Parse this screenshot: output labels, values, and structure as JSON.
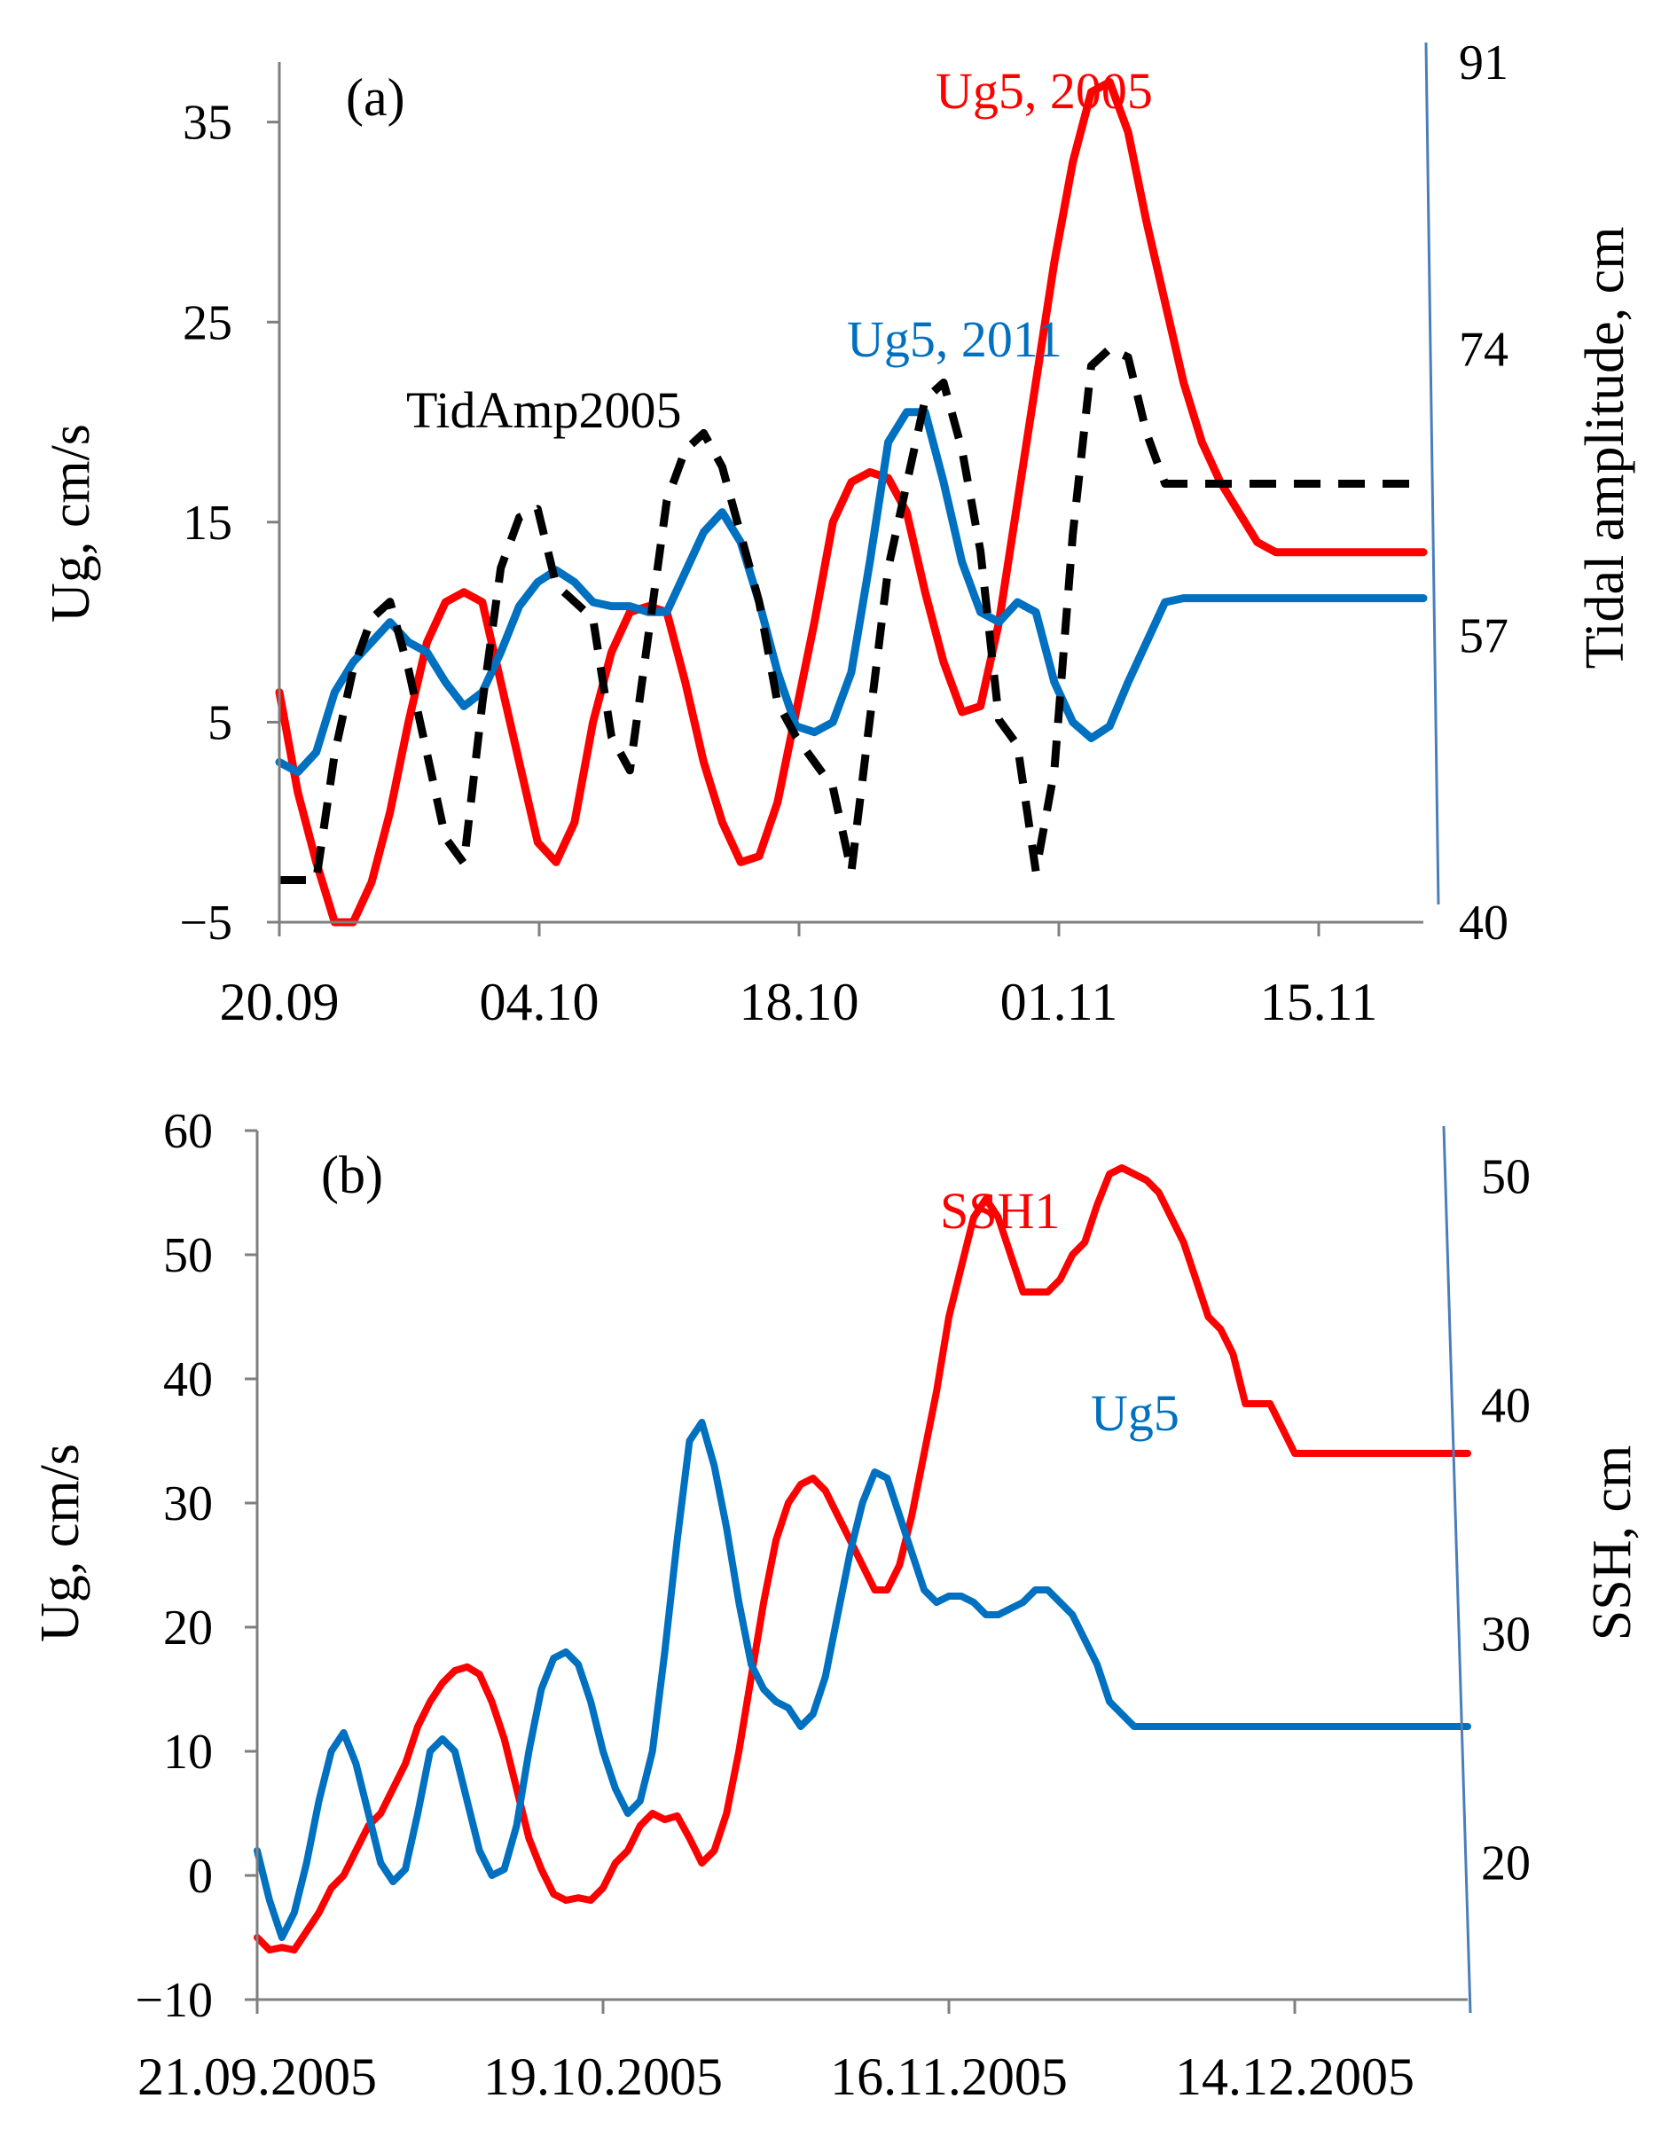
{
  "chart_data": [
    {
      "panel_label": "(a)",
      "type": "line",
      "x_tick_labels": [
        "20.09",
        "04.10",
        "18.10",
        "01.11",
        "15.11"
      ],
      "x_range_days": [
        0,
        62
      ],
      "ylabel": "Ug, cm/s",
      "ylim": [
        -5,
        38
      ],
      "y_ticks": [
        35,
        25,
        15,
        5,
        -5
      ],
      "y_tick_labels": [
        "35",
        "25",
        "15",
        "5",
        "−5"
      ],
      "y2label": "Tidal amplitude, cm",
      "y2lim": [
        40,
        91
      ],
      "y2_ticks": [
        91,
        74,
        57,
        40
      ],
      "y2_tick_labels": [
        "91",
        "74",
        "57",
        "40"
      ],
      "grid": false,
      "series": [
        {
          "name": "Ug5, 2005",
          "label": "Ug5, 2005",
          "color": "#ff0000",
          "axis": "left",
          "style": "solid",
          "x": [
            0,
            1,
            2,
            3,
            4,
            5,
            6,
            7,
            8,
            9,
            10,
            11,
            12,
            13,
            14,
            15,
            16,
            17,
            18,
            19,
            20,
            21,
            22,
            23,
            24,
            25,
            26,
            27,
            28,
            29,
            30,
            31,
            32,
            33,
            34,
            35,
            36,
            37,
            38,
            39,
            40,
            41,
            42,
            43,
            44,
            45,
            46,
            47,
            48,
            49,
            50,
            51,
            52,
            53,
            54,
            55,
            56,
            57,
            58,
            59,
            60,
            61,
            62
          ],
          "values": [
            6.5,
            1.5,
            -2,
            -5,
            -5,
            -3,
            0.5,
            5,
            9,
            11,
            11.5,
            11,
            7,
            3,
            -1,
            -2,
            0,
            5,
            8.5,
            10.5,
            10.8,
            10.5,
            7,
            3,
            0,
            -2,
            -1.7,
            1,
            5.5,
            10,
            15,
            17,
            17.5,
            17.2,
            15.5,
            11.5,
            8,
            5.5,
            5.8,
            10,
            16,
            22,
            28,
            33,
            36.5,
            37,
            34.5,
            30,
            26,
            22,
            19,
            17,
            15.5,
            14,
            13.5,
            13.5,
            13.5,
            13.5,
            13.5,
            13.5,
            13.5,
            13.5,
            13.5
          ]
        },
        {
          "name": "Ug5, 2011",
          "label": "Ug5, 2011",
          "color": "#0070c0",
          "axis": "left",
          "style": "solid",
          "x": [
            0,
            1,
            2,
            3,
            4,
            5,
            6,
            7,
            8,
            9,
            10,
            11,
            12,
            13,
            14,
            15,
            16,
            17,
            18,
            19,
            20,
            21,
            22,
            23,
            24,
            25,
            26,
            27,
            28,
            29,
            30,
            31,
            32,
            33,
            34,
            35,
            36,
            37,
            38,
            39,
            40,
            41,
            42,
            43,
            44,
            45,
            46,
            47,
            48,
            49,
            50,
            51,
            52,
            53,
            54,
            55,
            56,
            57,
            58,
            59,
            60,
            61,
            62
          ],
          "values": [
            3,
            2.5,
            3.5,
            6.5,
            8,
            9,
            10,
            9,
            8.5,
            7,
            5.8,
            6.5,
            8.5,
            10.8,
            12,
            12.6,
            12,
            11,
            10.8,
            10.8,
            10.5,
            10.5,
            12.5,
            14.5,
            15.5,
            14,
            11,
            7.5,
            4.8,
            4.5,
            5,
            7.5,
            13,
            19,
            20.5,
            20.5,
            17,
            13,
            10.5,
            10,
            11,
            10.5,
            7,
            5,
            4.2,
            4.8,
            7,
            9,
            11,
            11.2,
            11.2,
            11.2,
            11.2,
            11.2,
            11.2,
            11.2,
            11.2,
            11.2,
            11.2,
            11.2,
            11.2,
            11.2,
            11.2
          ]
        },
        {
          "name": "TidAmp2005",
          "label": "TidAmp2005",
          "color": "#000000",
          "axis": "right",
          "style": "dashed",
          "x": [
            0,
            2,
            3,
            4,
            5,
            6,
            7,
            8,
            9,
            10,
            11,
            12,
            13,
            14,
            15,
            16,
            17,
            18,
            19,
            20,
            21,
            22,
            23,
            24,
            25,
            26,
            27,
            28,
            29,
            30,
            31,
            32,
            33,
            34,
            35,
            36,
            37,
            38,
            39,
            40,
            41,
            42,
            43,
            44,
            45,
            46,
            47,
            48,
            49,
            50,
            51,
            52,
            53,
            54,
            55,
            56,
            57,
            58,
            59,
            60,
            61,
            62
          ],
          "values": [
            42.5,
            42.5,
            50,
            55,
            58,
            59,
            55,
            50,
            45,
            43.5,
            53,
            61,
            64,
            64.5,
            60,
            59,
            58,
            51,
            49,
            57,
            65,
            68,
            69,
            67,
            63,
            59,
            53,
            51,
            49.5,
            48,
            43,
            52,
            61,
            66,
            71,
            72,
            68,
            62,
            52,
            50.5,
            43,
            49,
            63,
            73,
            74,
            73.5,
            69,
            66,
            66,
            66,
            66,
            66,
            66,
            66,
            66,
            66,
            66,
            66,
            66,
            66,
            66,
            66
          ]
        }
      ]
    },
    {
      "panel_label": "(b)",
      "type": "line",
      "x_tick_labels": [
        "21.09.2005",
        "19.10.2005",
        "16.11.2005",
        "14.12.2005"
      ],
      "x_range_days": [
        0,
        98
      ],
      "ylabel": "Ug, cm/s",
      "ylim": [
        -10,
        60
      ],
      "y_ticks": [
        60,
        50,
        40,
        30,
        20,
        10,
        0,
        -10
      ],
      "y_tick_labels": [
        "60",
        "50",
        "40",
        "30",
        "20",
        "10",
        "0",
        "−10"
      ],
      "y2label": "SSH,  cm",
      "y2lim": [
        14,
        52
      ],
      "y2_ticks": [
        50,
        40,
        30,
        20
      ],
      "y2_tick_labels": [
        "50",
        "40",
        "30",
        "20"
      ],
      "grid": false,
      "series": [
        {
          "name": "SSH1",
          "label": "SSH1",
          "color": "#ff0000",
          "axis": "left",
          "style": "solid",
          "x": [
            0,
            1,
            2,
            3,
            4,
            5,
            6,
            7,
            8,
            9,
            10,
            11,
            12,
            13,
            14,
            15,
            16,
            17,
            18,
            19,
            20,
            21,
            22,
            23,
            24,
            25,
            26,
            27,
            28,
            29,
            30,
            31,
            32,
            33,
            34,
            35,
            36,
            37,
            38,
            39,
            40,
            41,
            42,
            43,
            44,
            45,
            46,
            47,
            48,
            49,
            50,
            51,
            52,
            53,
            54,
            55,
            56,
            57,
            58,
            59,
            60,
            61,
            62,
            63,
            64,
            65,
            66,
            67,
            68,
            69,
            70,
            71,
            72,
            73,
            74,
            75,
            76,
            77,
            78,
            79,
            80,
            81,
            82,
            83,
            84,
            85,
            86,
            87,
            88,
            89,
            90,
            91,
            92,
            93,
            94,
            95,
            96,
            97,
            98
          ],
          "values": [
            -5,
            -6,
            -5.8,
            -6,
            -4.5,
            -3,
            -1,
            0,
            2,
            4,
            5,
            7,
            9,
            12,
            14,
            15.5,
            16.5,
            16.8,
            16.2,
            14,
            11,
            7,
            3,
            0.5,
            -1.5,
            -2,
            -1.8,
            -2,
            -1,
            1,
            2,
            4,
            5,
            4.5,
            4.8,
            3,
            1,
            2,
            5,
            10,
            16,
            22,
            27,
            30,
            31.5,
            32,
            31,
            29,
            27,
            25,
            23,
            23,
            25,
            29,
            34,
            39,
            45,
            49,
            53,
            54.5,
            53,
            50,
            47,
            47,
            47,
            48,
            50,
            51,
            54,
            56.5,
            57,
            56.5,
            56,
            55,
            53,
            51,
            48,
            45,
            44,
            42,
            38,
            38,
            38,
            36,
            34,
            34,
            34,
            34,
            34,
            34,
            34,
            34,
            34,
            34,
            34,
            34,
            34,
            34,
            34
          ]
        },
        {
          "name": "Ug5",
          "label": "Ug5",
          "color": "#0070c0",
          "axis": "left",
          "style": "solid",
          "x": [
            0,
            1,
            2,
            3,
            4,
            5,
            6,
            7,
            8,
            9,
            10,
            11,
            12,
            13,
            14,
            15,
            16,
            17,
            18,
            19,
            20,
            21,
            22,
            23,
            24,
            25,
            26,
            27,
            28,
            29,
            30,
            31,
            32,
            33,
            34,
            35,
            36,
            37,
            38,
            39,
            40,
            41,
            42,
            43,
            44,
            45,
            46,
            47,
            48,
            49,
            50,
            51,
            52,
            53,
            54,
            55,
            56,
            57,
            58,
            59,
            60,
            61,
            62,
            63,
            64,
            65,
            66,
            67,
            68,
            69,
            70,
            71,
            72,
            73,
            74,
            75,
            76,
            77,
            78,
            79,
            80,
            81,
            82,
            83,
            84,
            85,
            86,
            87,
            88,
            89,
            90,
            91,
            92,
            93,
            94,
            95,
            96,
            97,
            98
          ],
          "values": [
            2,
            -2,
            -5,
            -3,
            1,
            6,
            10,
            11.5,
            9,
            5,
            1,
            -0.5,
            0.5,
            5,
            10,
            11,
            10,
            6,
            2,
            0,
            0.5,
            4,
            10,
            15,
            17.5,
            18,
            17,
            14,
            10,
            7,
            5,
            6,
            10,
            18,
            27,
            35,
            36.5,
            33,
            28,
            22,
            17,
            15,
            14,
            13.5,
            12,
            13,
            16,
            21,
            26,
            30,
            32.5,
            32,
            29,
            26,
            23,
            22,
            22.5,
            22.5,
            22,
            21,
            21,
            21.5,
            22,
            23,
            23,
            22,
            21,
            19,
            17,
            14,
            13,
            12,
            12,
            12,
            12,
            12,
            12,
            12,
            12,
            12,
            12,
            12,
            12,
            12,
            12,
            12,
            12,
            12,
            12,
            12,
            12,
            12,
            12,
            12,
            12,
            12,
            12,
            12,
            12
          ]
        }
      ]
    }
  ]
}
